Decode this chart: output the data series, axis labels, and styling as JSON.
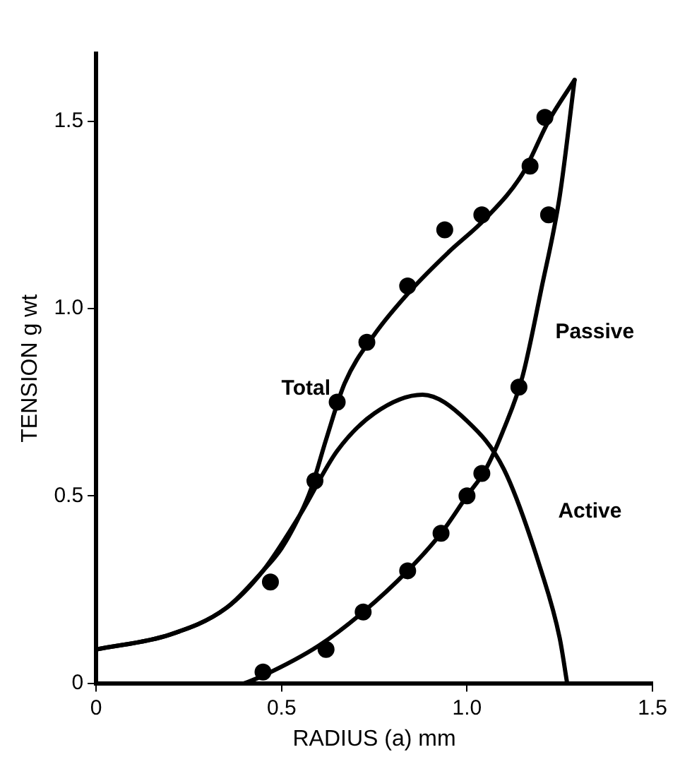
{
  "chart_data": {
    "type": "line",
    "xlabel": "RADIUS (a) mm",
    "ylabel": "TENSION g wt",
    "xlim": [
      0,
      1.5
    ],
    "ylim": [
      0,
      1.68
    ],
    "xticks": [
      0,
      0.5,
      {
        "value": 1,
        "label": "1.0"
      },
      1.5
    ],
    "yticks": [
      0,
      0.5,
      {
        "value": 1,
        "label": "1.0"
      },
      1.5
    ],
    "grid": false,
    "legend": false,
    "marker": "none",
    "line_style": "solid",
    "series": [
      {
        "name": "Total",
        "color": "#000000",
        "x": [
          0,
          0.2,
          0.35,
          0.45,
          0.5,
          0.55,
          0.58,
          0.62,
          0.67,
          0.75,
          0.85,
          0.95,
          1.05,
          1.15,
          1.22,
          1.29
        ],
        "values": [
          0.09,
          0.13,
          0.2,
          0.3,
          0.36,
          0.45,
          0.52,
          0.65,
          0.8,
          0.93,
          1.05,
          1.15,
          1.24,
          1.36,
          1.5,
          1.61
        ]
      },
      {
        "name": "Passive",
        "color": "#000000",
        "x": [
          0.4,
          0.45,
          0.6,
          0.72,
          0.84,
          0.93,
          1,
          1.05,
          1.1,
          1.15,
          1.2,
          1.25,
          1.29
        ],
        "values": [
          0,
          0.02,
          0.1,
          0.19,
          0.3,
          0.4,
          0.5,
          0.57,
          0.68,
          0.82,
          1.05,
          1.3,
          1.61
        ]
      },
      {
        "name": "Active",
        "color": "#000000",
        "x": [
          0,
          0.2,
          0.35,
          0.45,
          0.55,
          0.65,
          0.75,
          0.88,
          1,
          1.1,
          1.2,
          1.25,
          1.27
        ],
        "values": [
          0.09,
          0.13,
          0.2,
          0.3,
          0.45,
          0.62,
          0.72,
          0.77,
          0.7,
          0.57,
          0.3,
          0.12,
          0
        ]
      },
      {
        "type": "scatter",
        "marker": "circle",
        "color": "#000000",
        "x": [
          0.47,
          0.59,
          0.65,
          0.73,
          0.84,
          0.94,
          1.04,
          1.17,
          1.21
        ],
        "values": [
          0.27,
          0.54,
          0.75,
          0.91,
          1.06,
          1.21,
          1.25,
          1.38,
          1.51
        ]
      },
      {
        "type": "scatter",
        "marker": "circle",
        "color": "#000000",
        "x": [
          0.45,
          0.62,
          0.72,
          0.84,
          0.93,
          1,
          1.04,
          1.14,
          1.22
        ],
        "values": [
          0.03,
          0.09,
          0.19,
          0.3,
          0.4,
          0.5,
          0.56,
          0.79,
          1.25
        ]
      }
    ]
  }
}
